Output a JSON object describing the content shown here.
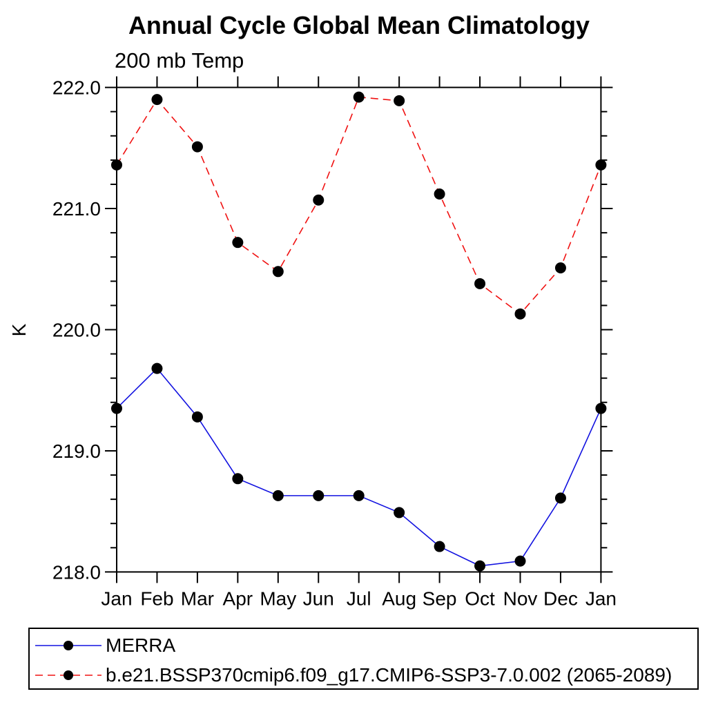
{
  "chart_data": {
    "type": "line",
    "title": "Annual Cycle Global Mean Climatology",
    "subtitle": "200 mb Temp",
    "ylabel": "K",
    "xlabel": "",
    "categories": [
      "Jan",
      "Feb",
      "Mar",
      "Apr",
      "May",
      "Jun",
      "Jul",
      "Aug",
      "Sep",
      "Oct",
      "Nov",
      "Dec",
      "Jan"
    ],
    "ylim": [
      218.0,
      222.0
    ],
    "ytick_labels": [
      "218.0",
      "219.0",
      "220.0",
      "221.0",
      "222.0"
    ],
    "y_major_step": 1.0,
    "y_minor_step": 0.2,
    "grid": false,
    "legend_position": "bottom",
    "axis_color": "#000000",
    "marker_color": "#000000",
    "series": [
      {
        "name": "MERRA",
        "color": "#1212e0",
        "style": "solid",
        "marker": "circle",
        "values": [
          219.35,
          219.68,
          219.28,
          218.77,
          218.63,
          218.63,
          218.63,
          218.49,
          218.21,
          218.05,
          218.09,
          218.61,
          219.35
        ]
      },
      {
        "name": "b.e21.BSSP370cmip6.f09_g17.CMIP6-SSP3-7.0.002 (2065-2089)",
        "color": "#f01010",
        "style": "dashed",
        "marker": "circle",
        "values": [
          221.36,
          221.9,
          221.51,
          220.72,
          220.48,
          221.07,
          221.92,
          221.89,
          221.12,
          220.38,
          220.13,
          220.51,
          221.36
        ]
      }
    ]
  }
}
